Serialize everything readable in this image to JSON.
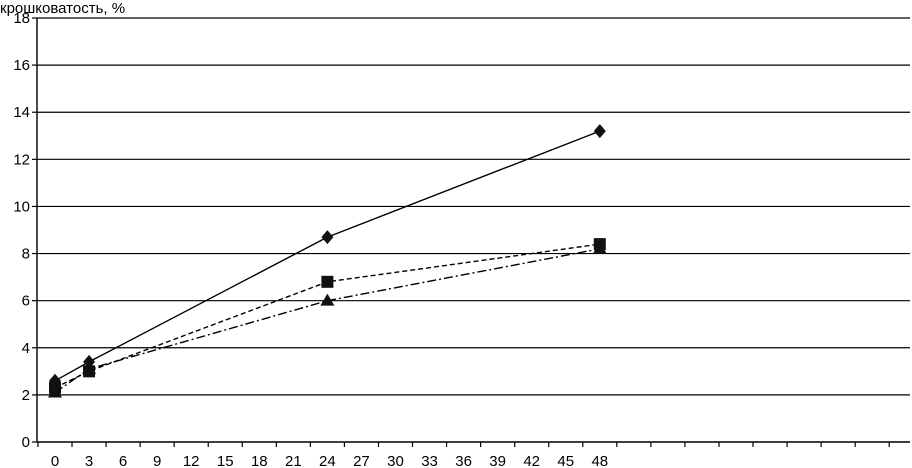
{
  "chart_data": {
    "type": "line",
    "title": "",
    "ylabel": "крошковатость, %",
    "xlabel": "",
    "ylim": [
      0,
      18
    ],
    "yticks": [
      0,
      2,
      4,
      6,
      8,
      10,
      12,
      14,
      16,
      18
    ],
    "x_tick_labels": [
      "0",
      "3",
      "6",
      "9",
      "12",
      "15",
      "18",
      "21",
      "24",
      "27",
      "30",
      "33",
      "36",
      "39",
      "42",
      "45",
      "48"
    ],
    "x_domain": [
      0,
      77
    ],
    "grid": "horizontal",
    "legend": "none",
    "series": [
      {
        "marker": "diamond",
        "line_style": "solid",
        "points": [
          {
            "x": 0,
            "y": 2.6
          },
          {
            "x": 3,
            "y": 3.4
          },
          {
            "x": 24,
            "y": 8.7
          },
          {
            "x": 48,
            "y": 13.2
          }
        ]
      },
      {
        "marker": "square",
        "line_style": "dashed",
        "points": [
          {
            "x": 0,
            "y": 2.3
          },
          {
            "x": 3,
            "y": 3.0
          },
          {
            "x": 24,
            "y": 6.8
          },
          {
            "x": 48,
            "y": 8.4
          }
        ]
      },
      {
        "marker": "triangle",
        "line_style": "dash-dot",
        "points": [
          {
            "x": 0,
            "y": 2.1
          },
          {
            "x": 3,
            "y": 3.1
          },
          {
            "x": 24,
            "y": 6.0
          },
          {
            "x": 48,
            "y": 8.2
          }
        ]
      }
    ]
  }
}
